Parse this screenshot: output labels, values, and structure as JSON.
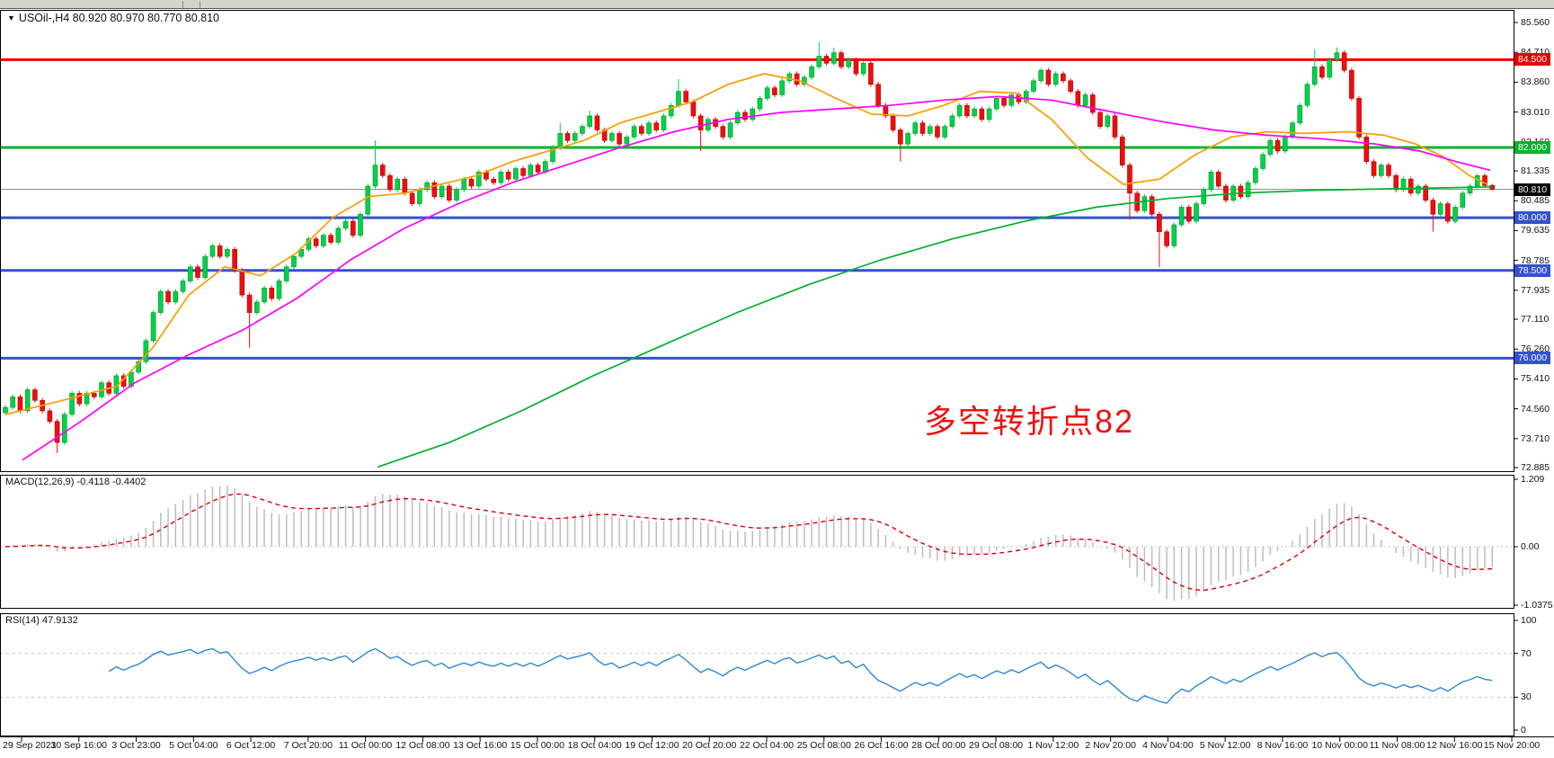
{
  "symbol_bar": {
    "symbol": "USOil-",
    "timeframe": "H4",
    "open": "80.920",
    "high": "80.970",
    "low": "80.770",
    "close": "80.810",
    "display": "USOil-,H4  80.920 80.970 80.770 80.810"
  },
  "annotation": {
    "text": "多空转折点82",
    "color": "#ee1111"
  },
  "price_axis": {
    "labels": [
      "85.560",
      "84.710",
      "83.860",
      "83.010",
      "82.160",
      "81.335",
      "80.485",
      "79.635",
      "78.785",
      "77.935",
      "77.110",
      "76.260",
      "75.410",
      "74.560",
      "73.710",
      "72.885"
    ],
    "badges": [
      {
        "text": "84.500",
        "price": 84.5,
        "bg": "#e60000"
      },
      {
        "text": "82.000",
        "price": 82.0,
        "bg": "#00b42c"
      },
      {
        "text": "80.810",
        "price": 80.81,
        "bg": "#000000"
      },
      {
        "text": "80.000",
        "price": 80.0,
        "bg": "#3352cc"
      },
      {
        "text": "78.500",
        "price": 78.5,
        "bg": "#3352cc"
      },
      {
        "text": "76.000",
        "price": 76.0,
        "bg": "#3352cc"
      }
    ]
  },
  "time_axis": {
    "labels": [
      "29 Sep 2021",
      "30 Sep 16:00",
      "3 Oct 23:00",
      "5 Oct 04:00",
      "6 Oct 12:00",
      "7 Oct 20:00",
      "11 Oct 00:00",
      "12 Oct 08:00",
      "13 Oct 16:00",
      "15 Oct 00:00",
      "18 Oct 04:00",
      "19 Oct 12:00",
      "20 Oct 20:00",
      "22 Oct 04:00",
      "25 Oct 08:00",
      "26 Oct 16:00",
      "28 Oct 00:00",
      "29 Oct 08:00",
      "1 Nov 12:00",
      "2 Nov 20:00",
      "4 Nov 04:00",
      "5 Nov 12:00",
      "8 Nov 16:00",
      "10 Nov 00:00",
      "11 Nov 08:00",
      "12 Nov 16:00",
      "15 Nov 20:00"
    ]
  },
  "macd_panel": {
    "display": "MACD(12,26,9) -0.4118 -0.4402",
    "name": "MACD",
    "params": "12,26,9",
    "value": "-0.4118",
    "signal_value": "-0.4402",
    "axis": [
      "1.209",
      "0.00",
      "-1.0375"
    ]
  },
  "rsi_panel": {
    "display": "RSI(14) 47.9132",
    "name": "RSI",
    "period": "14",
    "value": "47.9132",
    "axis": [
      "100",
      "70",
      "30",
      "0"
    ]
  },
  "chart_data": {
    "type": "candlestick",
    "title": "USOil- H4",
    "x_labels": [
      "29 Sep 2021",
      "30 Sep 16:00",
      "3 Oct 23:00",
      "5 Oct 04:00",
      "6 Oct 12:00",
      "7 Oct 20:00",
      "11 Oct 00:00",
      "12 Oct 08:00",
      "13 Oct 16:00",
      "15 Oct 00:00",
      "18 Oct 04:00",
      "19 Oct 12:00",
      "20 Oct 20:00",
      "22 Oct 04:00",
      "25 Oct 08:00",
      "26 Oct 16:00",
      "28 Oct 00:00",
      "29 Oct 08:00",
      "1 Nov 12:00",
      "2 Nov 20:00",
      "4 Nov 04:00",
      "5 Nov 12:00",
      "8 Nov 16:00",
      "10 Nov 00:00",
      "11 Nov 08:00",
      "12 Nov 16:00",
      "15 Nov 20:00"
    ],
    "price_axis_ticks": [
      85.56,
      84.71,
      83.86,
      83.01,
      82.16,
      81.335,
      80.485,
      79.635,
      78.785,
      77.935,
      77.11,
      76.26,
      75.41,
      74.56,
      73.71,
      72.885
    ],
    "candles": {
      "first_open": 74.45,
      "default_wick": 0.07,
      "closes": [
        74.6,
        74.9,
        74.5,
        75.1,
        74.8,
        74.5,
        74.2,
        73.6,
        74.4,
        75.0,
        74.7,
        75.0,
        74.9,
        75.3,
        75.0,
        75.5,
        75.2,
        75.6,
        75.9,
        76.5,
        77.3,
        77.9,
        77.6,
        77.9,
        78.2,
        78.6,
        78.3,
        78.9,
        79.2,
        78.9,
        79.1,
        78.5,
        77.8,
        77.3,
        77.6,
        78.0,
        77.7,
        78.2,
        78.6,
        78.9,
        79.1,
        79.4,
        79.2,
        79.5,
        79.3,
        79.7,
        79.9,
        79.5,
        80.1,
        80.9,
        81.5,
        81.2,
        80.8,
        81.1,
        80.7,
        80.4,
        80.8,
        81.0,
        80.6,
        80.9,
        80.5,
        80.8,
        81.1,
        80.9,
        81.3,
        81.1,
        81.0,
        81.3,
        81.1,
        81.4,
        81.2,
        81.5,
        81.3,
        81.6,
        82.0,
        82.4,
        82.2,
        82.4,
        82.6,
        82.9,
        82.5,
        82.2,
        82.4,
        82.1,
        82.3,
        82.6,
        82.4,
        82.7,
        82.5,
        82.9,
        83.2,
        83.6,
        83.3,
        82.9,
        82.5,
        82.8,
        82.6,
        82.3,
        82.7,
        83.0,
        82.8,
        83.1,
        83.4,
        83.7,
        83.5,
        83.9,
        84.1,
        83.8,
        84.0,
        84.3,
        84.6,
        84.4,
        84.7,
        84.3,
        84.5,
        84.1,
        84.4,
        83.8,
        83.2,
        82.9,
        82.5,
        82.1,
        82.4,
        82.7,
        82.4,
        82.6,
        82.3,
        82.6,
        82.9,
        83.2,
        82.9,
        83.1,
        82.8,
        83.1,
        83.4,
        83.2,
        83.5,
        83.3,
        83.6,
        83.9,
        84.2,
        83.8,
        84.1,
        83.9,
        83.6,
        83.2,
        83.5,
        83.0,
        82.6,
        82.9,
        82.3,
        81.5,
        80.7,
        80.2,
        80.6,
        80.1,
        79.6,
        79.2,
        79.8,
        80.3,
        79.9,
        80.4,
        80.8,
        81.3,
        80.9,
        80.5,
        80.9,
        80.6,
        81.0,
        81.4,
        81.8,
        82.2,
        81.9,
        82.3,
        82.7,
        83.2,
        83.8,
        84.3,
        84.0,
        84.5,
        84.7,
        84.2,
        83.4,
        82.3,
        81.6,
        81.2,
        81.5,
        81.2,
        80.8,
        81.1,
        80.7,
        80.9,
        80.5,
        80.1,
        80.4,
        79.9,
        80.3,
        80.7,
        80.9,
        81.2,
        80.92,
        80.81
      ],
      "overrides": {
        "7": {
          "low": 73.3
        },
        "33": {
          "low": 76.3
        },
        "50": {
          "high": 82.2
        },
        "75": {
          "high": 82.7
        },
        "79": {
          "high": 83.05
        },
        "91": {
          "high": 83.95
        },
        "94": {
          "low": 81.9
        },
        "110": {
          "high": 85.0
        },
        "112": {
          "high": 84.85
        },
        "121": {
          "low": 81.6
        },
        "152": {
          "low": 79.95
        },
        "156": {
          "low": 78.6
        },
        "177": {
          "high": 84.8
        },
        "180": {
          "high": 84.85
        },
        "193": {
          "low": 79.6
        },
        "201": {
          "high": 80.97,
          "low": 80.77
        }
      }
    },
    "hlines": [
      {
        "name": "resistance-84.5",
        "price": 84.5,
        "color": "#f00000",
        "width": 3
      },
      {
        "name": "level-82.0",
        "price": 82.0,
        "color": "#00b42c",
        "width": 3
      },
      {
        "name": "current-price",
        "price": 80.81,
        "color": "#909090",
        "width": 1
      },
      {
        "name": "support-80.0",
        "price": 80.0,
        "color": "#3352cc",
        "width": 3
      },
      {
        "name": "support-78.5",
        "price": 78.5,
        "color": "#3352cc",
        "width": 3
      },
      {
        "name": "support-76.0",
        "price": 76.0,
        "color": "#3352cc",
        "width": 3
      }
    ],
    "ma_lines": [
      {
        "name": "ma-fast-orange",
        "color": "#ff9c00",
        "points": [
          [
            6,
            74.4
          ],
          [
            70,
            74.8
          ],
          [
            130,
            75.2
          ],
          [
            170,
            76.3
          ],
          [
            210,
            77.8
          ],
          [
            250,
            78.6
          ],
          [
            290,
            78.35
          ],
          [
            330,
            79.0
          ],
          [
            370,
            80.0
          ],
          [
            410,
            80.6
          ],
          [
            450,
            80.7
          ],
          [
            490,
            80.95
          ],
          [
            530,
            81.2
          ],
          [
            570,
            81.6
          ],
          [
            610,
            81.9
          ],
          [
            650,
            82.2
          ],
          [
            690,
            82.7
          ],
          [
            730,
            83.0
          ],
          [
            770,
            83.3
          ],
          [
            810,
            83.8
          ],
          [
            850,
            84.1
          ],
          [
            890,
            83.9
          ],
          [
            930,
            83.4
          ],
          [
            970,
            82.95
          ],
          [
            1010,
            82.9
          ],
          [
            1050,
            83.2
          ],
          [
            1090,
            83.6
          ],
          [
            1130,
            83.55
          ],
          [
            1170,
            82.8
          ],
          [
            1210,
            81.7
          ],
          [
            1250,
            80.95
          ],
          [
            1290,
            81.1
          ],
          [
            1330,
            81.8
          ],
          [
            1370,
            82.3
          ],
          [
            1410,
            82.45
          ],
          [
            1450,
            82.4
          ],
          [
            1500,
            82.45
          ],
          [
            1540,
            82.35
          ],
          [
            1575,
            82.1
          ],
          [
            1605,
            81.75
          ],
          [
            1635,
            81.2
          ],
          [
            1655,
            80.95
          ]
        ]
      },
      {
        "name": "ma-mid-magenta",
        "color": "#ff00ff",
        "points": [
          [
            25,
            73.1
          ],
          [
            90,
            74.2
          ],
          [
            150,
            75.3
          ],
          [
            210,
            76.1
          ],
          [
            270,
            76.8
          ],
          [
            330,
            77.7
          ],
          [
            390,
            78.8
          ],
          [
            450,
            79.7
          ],
          [
            510,
            80.4
          ],
          [
            570,
            81.0
          ],
          [
            630,
            81.5
          ],
          [
            690,
            82.0
          ],
          [
            750,
            82.45
          ],
          [
            810,
            82.8
          ],
          [
            870,
            83.0
          ],
          [
            930,
            83.1
          ],
          [
            990,
            83.2
          ],
          [
            1050,
            83.35
          ],
          [
            1110,
            83.45
          ],
          [
            1170,
            83.35
          ],
          [
            1230,
            83.05
          ],
          [
            1290,
            82.75
          ],
          [
            1350,
            82.5
          ],
          [
            1410,
            82.35
          ],
          [
            1470,
            82.25
          ],
          [
            1530,
            82.1
          ],
          [
            1580,
            81.9
          ],
          [
            1620,
            81.6
          ],
          [
            1658,
            81.35
          ]
        ]
      },
      {
        "name": "ma-slow-green",
        "color": "#00b030",
        "points": [
          [
            420,
            72.9
          ],
          [
            500,
            73.6
          ],
          [
            580,
            74.5
          ],
          [
            660,
            75.5
          ],
          [
            740,
            76.4
          ],
          [
            820,
            77.3
          ],
          [
            900,
            78.1
          ],
          [
            980,
            78.8
          ],
          [
            1060,
            79.4
          ],
          [
            1140,
            79.9
          ],
          [
            1220,
            80.3
          ],
          [
            1300,
            80.55
          ],
          [
            1380,
            80.7
          ],
          [
            1460,
            80.78
          ],
          [
            1540,
            80.82
          ],
          [
            1620,
            80.86
          ],
          [
            1660,
            80.88
          ]
        ]
      }
    ],
    "macd": {
      "fast": 12,
      "slow": 26,
      "signal": 9,
      "current": -0.4118,
      "current_signal": -0.4402,
      "scale": [
        1.209,
        0.0,
        -1.0375
      ]
    },
    "rsi": {
      "period": 14,
      "current": 47.9132,
      "levels": [
        70,
        30
      ],
      "range": [
        0,
        100
      ]
    },
    "colors": {
      "up": "#00d24b",
      "up_border": "#009427",
      "down": "#ed0e0e",
      "down_border": "#b40000",
      "macd_hist": "#bdbdbd",
      "macd_signal": "#e00000",
      "rsi_line": "#2d87d8",
      "level_dash": "#c8c8c8",
      "frame": "#000000"
    }
  }
}
